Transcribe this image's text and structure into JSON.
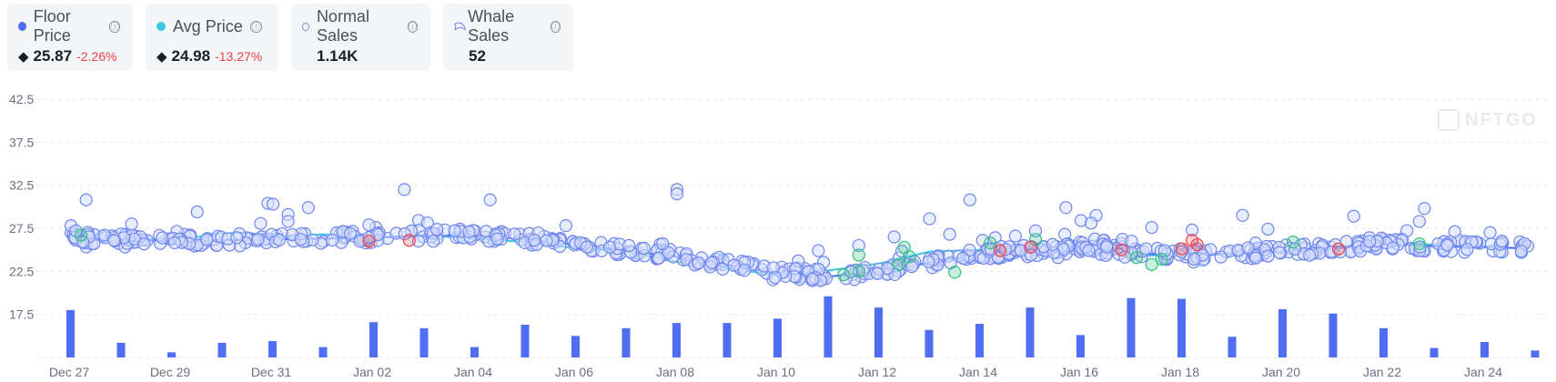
{
  "cards": [
    {
      "label": "Floor Price",
      "icon": "filled-dot-icon",
      "color": "#4f6ef2",
      "value": "25.87",
      "change": "-2.26%",
      "currency": "eth-icon"
    },
    {
      "label": "Avg Price",
      "icon": "filled-dot-icon",
      "color": "#3dc7e0",
      "value": "24.98",
      "change": "-13.27%",
      "currency": "eth-icon"
    },
    {
      "label": "Normal Sales",
      "icon": "ring-dot-icon",
      "color": "#7a8fe8",
      "value": "1.14K"
    },
    {
      "label": "Whale Sales",
      "icon": "whale-icon",
      "color": "#7a8fe8",
      "value": "52"
    }
  ],
  "info_icon": "ⓘ",
  "eth_symbol": "◆",
  "watermark": "NFTGO",
  "chart_data": {
    "type": "scatter",
    "x_labels": [
      "Dec 27",
      "Dec 29",
      "Dec 31",
      "Jan 02",
      "Jan 04",
      "Jan 06",
      "Jan 08",
      "Jan 10",
      "Jan 12",
      "Jan 14",
      "Jan 16",
      "Jan 18",
      "Jan 20",
      "Jan 22",
      "Jan 24"
    ],
    "y_ticks": [
      17.5,
      22.5,
      27.5,
      32.5,
      37.5,
      42.5
    ],
    "ylim": [
      12.5,
      42.5
    ],
    "x_range_days": [
      0,
      29
    ],
    "grid": "horizontal-dashed",
    "colors": {
      "floor": "#4f6ef2",
      "avg": "#3dc7e0",
      "normal_fill": "#d6defb",
      "normal_stroke": "#6f87ee",
      "whale_green": "#2ec27e",
      "whale_red": "#f0424c",
      "bar": "#4f6ef2"
    },
    "series": [
      {
        "name": "Floor Price",
        "x": [
          0,
          1,
          2,
          3,
          4,
          5,
          6,
          7,
          8,
          9,
          10,
          11,
          12,
          12.5,
          13,
          14,
          15,
          16,
          17,
          18,
          19,
          20,
          21,
          22,
          23,
          24,
          25,
          26,
          27,
          28,
          28.8
        ],
        "values": [
          26.3,
          26.2,
          26.0,
          26.1,
          26.2,
          26.3,
          26.4,
          26.6,
          26.7,
          26.2,
          25.6,
          24.9,
          24.2,
          23.8,
          23.2,
          22.3,
          21.9,
          22.4,
          23.5,
          24.5,
          24.8,
          25.2,
          24.6,
          24.4,
          24.5,
          24.8,
          25.1,
          25.7,
          25.4,
          25.3,
          25.2
        ]
      },
      {
        "name": "Avg Price",
        "x": [
          0,
          0.5,
          1,
          2,
          3,
          3.5,
          4,
          5,
          6,
          7,
          8,
          9,
          10,
          11,
          12,
          13,
          14,
          15,
          16,
          17,
          18,
          19,
          20,
          21,
          22,
          23,
          24,
          25,
          26,
          27,
          28,
          28.8
        ],
        "values": [
          26.5,
          26.8,
          26.4,
          26.1,
          26.9,
          27.0,
          26.5,
          26.8,
          26.4,
          26.7,
          26.3,
          25.9,
          25.2,
          24.8,
          23.6,
          22.9,
          22.0,
          22.6,
          23.4,
          24.8,
          25.0,
          24.7,
          24.9,
          24.3,
          24.4,
          24.6,
          24.9,
          25.3,
          25.9,
          25.6,
          25.4,
          25.1
        ]
      }
    ],
    "outliers": [
      {
        "x": 0.3,
        "y": 30.8
      },
      {
        "x": 2.5,
        "y": 29.4
      },
      {
        "x": 3.9,
        "y": 30.4
      },
      {
        "x": 4.0,
        "y": 30.3
      },
      {
        "x": 4.3,
        "y": 29.1
      },
      {
        "x": 4.3,
        "y": 28.3
      },
      {
        "x": 4.7,
        "y": 29.9
      },
      {
        "x": 6.6,
        "y": 32.0
      },
      {
        "x": 8.3,
        "y": 30.8
      },
      {
        "x": 12.0,
        "y": 32.0
      },
      {
        "x": 12.0,
        "y": 31.5
      },
      {
        "x": 17.0,
        "y": 28.6
      },
      {
        "x": 17.8,
        "y": 30.8
      },
      {
        "x": 19.7,
        "y": 29.9
      },
      {
        "x": 20.0,
        "y": 28.4
      },
      {
        "x": 20.3,
        "y": 29.0
      },
      {
        "x": 20.2,
        "y": 28.1
      },
      {
        "x": 23.2,
        "y": 29.0
      },
      {
        "x": 25.4,
        "y": 28.9
      },
      {
        "x": 26.8,
        "y": 29.8
      },
      {
        "x": 26.7,
        "y": 28.3
      },
      {
        "x": 1.2,
        "y": 28.0
      },
      {
        "x": 5.9,
        "y": 27.9
      },
      {
        "x": 9.8,
        "y": 27.8
      },
      {
        "x": 21.4,
        "y": 27.6
      },
      {
        "x": 22.2,
        "y": 27.3
      },
      {
        "x": 16.3,
        "y": 26.5
      },
      {
        "x": 19.1,
        "y": 27.2
      },
      {
        "x": 15.6,
        "y": 25.5
      },
      {
        "x": 14.8,
        "y": 24.9
      },
      {
        "x": 18.7,
        "y": 26.6
      },
      {
        "x": 27.4,
        "y": 27.1
      },
      {
        "x": 28.1,
        "y": 27.0
      },
      {
        "x": 23.7,
        "y": 27.4
      },
      {
        "x": 17.4,
        "y": 26.8
      },
      {
        "x": 21.0,
        "y": 26.0
      },
      {
        "x": 0.0,
        "y": 27.8
      },
      {
        "x": 0.1,
        "y": 27.2
      }
    ],
    "whale_sales": [
      {
        "x": 15.6,
        "y": 24.4,
        "color": "green"
      },
      {
        "x": 15.6,
        "y": 22.5,
        "color": "green"
      },
      {
        "x": 16.4,
        "y": 23.3,
        "color": "green"
      },
      {
        "x": 16.5,
        "y": 25.3,
        "color": "green"
      },
      {
        "x": 16.6,
        "y": 24.2,
        "color": "green"
      },
      {
        "x": 15.3,
        "y": 22.1,
        "color": "green"
      },
      {
        "x": 17.5,
        "y": 22.4,
        "color": "green"
      },
      {
        "x": 18.2,
        "y": 25.8,
        "color": "green"
      },
      {
        "x": 19.1,
        "y": 26.2,
        "color": "green"
      },
      {
        "x": 21.1,
        "y": 24.1,
        "color": "green"
      },
      {
        "x": 21.4,
        "y": 23.3,
        "color": "green"
      },
      {
        "x": 21.6,
        "y": 23.9,
        "color": "green"
      },
      {
        "x": 24.2,
        "y": 25.9,
        "color": "green"
      },
      {
        "x": 26.7,
        "y": 25.7,
        "color": "green"
      },
      {
        "x": 0.2,
        "y": 26.7,
        "color": "green"
      },
      {
        "x": 18.4,
        "y": 24.9,
        "color": "red"
      },
      {
        "x": 19.0,
        "y": 25.3,
        "color": "red"
      },
      {
        "x": 20.8,
        "y": 25.0,
        "color": "red"
      },
      {
        "x": 22.0,
        "y": 25.1,
        "color": "red"
      },
      {
        "x": 22.2,
        "y": 26.1,
        "color": "red"
      },
      {
        "x": 22.3,
        "y": 25.6,
        "color": "red"
      },
      {
        "x": 25.1,
        "y": 25.1,
        "color": "red"
      },
      {
        "x": 5.9,
        "y": 26.0,
        "color": "red"
      },
      {
        "x": 6.7,
        "y": 26.1,
        "color": "red"
      }
    ],
    "volume_bars": {
      "x": [
        0,
        1,
        2,
        3,
        4,
        5,
        6,
        7,
        8,
        9,
        10,
        11,
        12,
        13,
        14,
        15,
        16,
        17,
        18,
        19,
        20,
        21,
        22,
        23,
        24,
        25,
        26,
        27,
        28,
        29
      ],
      "values": [
        18.0,
        14.2,
        13.1,
        14.2,
        14.4,
        13.7,
        16.6,
        15.9,
        13.7,
        16.3,
        15.0,
        15.9,
        16.5,
        16.5,
        17.0,
        19.6,
        18.3,
        15.7,
        16.4,
        18.3,
        15.1,
        19.4,
        19.3,
        14.9,
        18.1,
        17.6,
        15.9,
        13.6,
        14.3,
        13.3
      ]
    }
  }
}
